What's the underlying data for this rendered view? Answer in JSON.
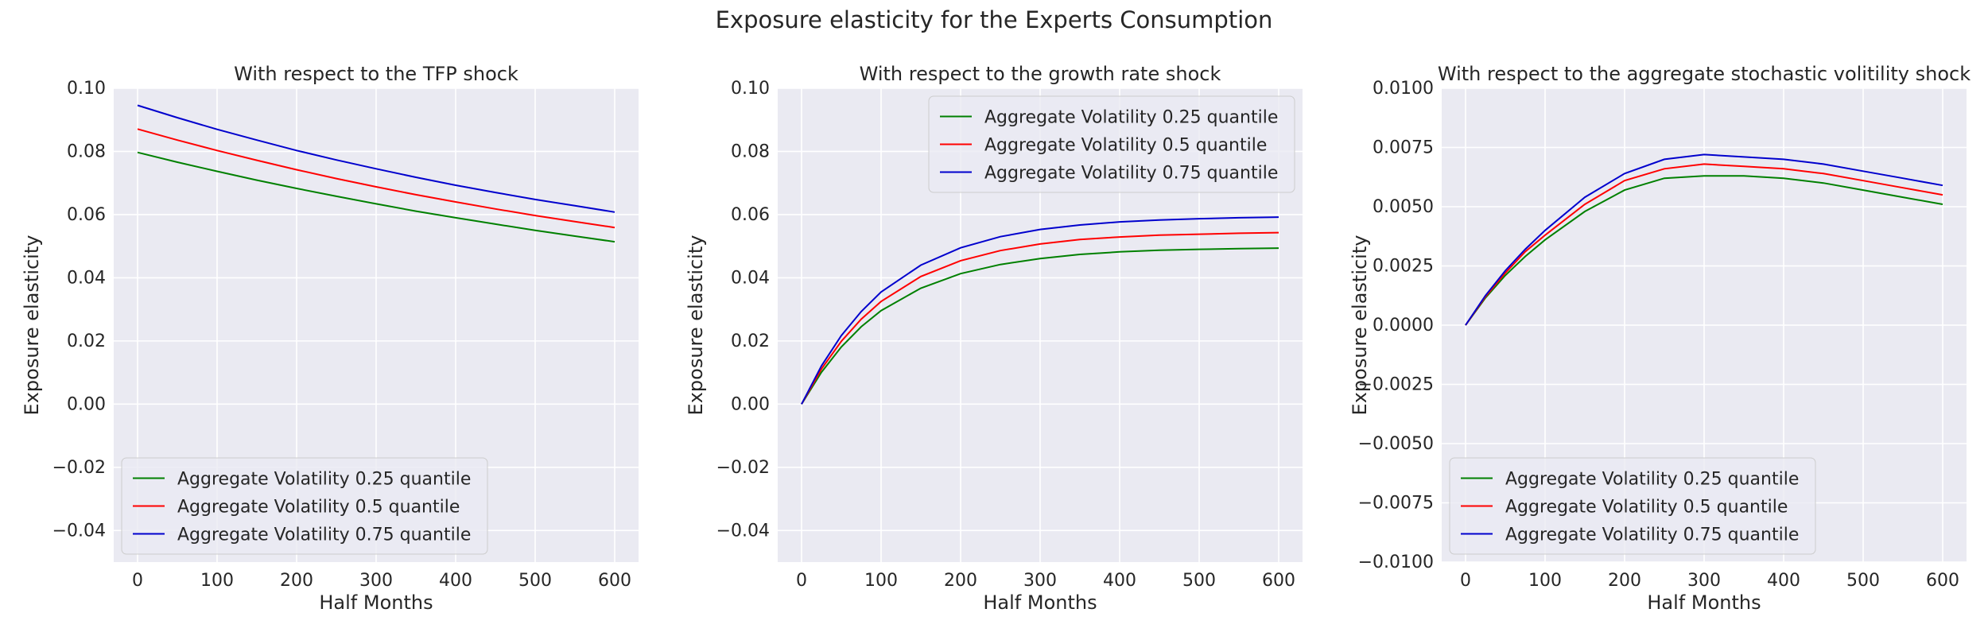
{
  "figure": {
    "title": "Exposure elasticity for the Experts Consumption"
  },
  "chart_data": [
    {
      "type": "line",
      "title": "With respect to the TFP shock",
      "xlabel": "Half Months",
      "ylabel": "Exposure elasticity",
      "xlim": [
        -30,
        630
      ],
      "ylim": [
        -0.05,
        0.1
      ],
      "xticks": [
        0,
        100,
        200,
        300,
        400,
        500,
        600
      ],
      "xtick_labels": [
        "0",
        "100",
        "200",
        "300",
        "400",
        "500",
        "600"
      ],
      "yticks": [
        -0.04,
        -0.02,
        0.0,
        0.02,
        0.04,
        0.06,
        0.08,
        0.1
      ],
      "ytick_labels": [
        "−0.04",
        "−0.02",
        "0.00",
        "0.02",
        "0.04",
        "0.06",
        "0.08",
        "0.10"
      ],
      "grid": true,
      "legend_position": "lower-left",
      "x": [
        0,
        50,
        100,
        150,
        200,
        250,
        300,
        350,
        400,
        450,
        500,
        550,
        600
      ],
      "series": [
        {
          "name": "Aggregate Volatility 0.25 quantile",
          "color": "#008000",
          "values": [
            0.0797,
            0.0766,
            0.0737,
            0.0709,
            0.0683,
            0.0658,
            0.0634,
            0.0611,
            0.059,
            0.057,
            0.055,
            0.0532,
            0.0514
          ]
        },
        {
          "name": "Aggregate Volatility 0.5 quantile",
          "color": "#ff0000",
          "values": [
            0.0871,
            0.0836,
            0.0803,
            0.0772,
            0.0742,
            0.0714,
            0.0688,
            0.0663,
            0.064,
            0.0618,
            0.0597,
            0.0578,
            0.0559
          ]
        },
        {
          "name": "Aggregate Volatility 0.75 quantile",
          "color": "#0000cd",
          "values": [
            0.0946,
            0.0907,
            0.087,
            0.0836,
            0.0803,
            0.0773,
            0.0745,
            0.0718,
            0.0693,
            0.067,
            0.0648,
            0.0628,
            0.0608
          ]
        }
      ]
    },
    {
      "type": "line",
      "title": "With respect to the growth rate shock",
      "xlabel": "Half Months",
      "ylabel": "Exposure elasticity",
      "xlim": [
        -30,
        630
      ],
      "ylim": [
        -0.05,
        0.1
      ],
      "xticks": [
        0,
        100,
        200,
        300,
        400,
        500,
        600
      ],
      "xtick_labels": [
        "0",
        "100",
        "200",
        "300",
        "400",
        "500",
        "600"
      ],
      "yticks": [
        -0.04,
        -0.02,
        0.0,
        0.02,
        0.04,
        0.06,
        0.08,
        0.1
      ],
      "ytick_labels": [
        "−0.04",
        "−0.02",
        "0.00",
        "0.02",
        "0.04",
        "0.06",
        "0.08",
        "0.10"
      ],
      "grid": true,
      "legend_position": "upper-right",
      "x": [
        0,
        25,
        50,
        75,
        100,
        150,
        200,
        250,
        300,
        350,
        400,
        450,
        500,
        550,
        600
      ],
      "series": [
        {
          "name": "Aggregate Volatility 0.25 quantile",
          "color": "#008000",
          "values": [
            0.0,
            0.0101,
            0.0181,
            0.0245,
            0.0296,
            0.0367,
            0.0413,
            0.0442,
            0.0461,
            0.0474,
            0.0482,
            0.0487,
            0.049,
            0.0492,
            0.0494
          ]
        },
        {
          "name": "Aggregate Volatility 0.5 quantile",
          "color": "#ff0000",
          "values": [
            0.0,
            0.0111,
            0.0199,
            0.0269,
            0.0325,
            0.0404,
            0.0454,
            0.0486,
            0.0507,
            0.0521,
            0.0529,
            0.0535,
            0.0538,
            0.0541,
            0.0543
          ]
        },
        {
          "name": "Aggregate Volatility 0.75 quantile",
          "color": "#0000cd",
          "values": [
            0.0,
            0.0121,
            0.0217,
            0.0293,
            0.0355,
            0.044,
            0.0495,
            0.053,
            0.0553,
            0.0567,
            0.0577,
            0.0583,
            0.0587,
            0.059,
            0.0592
          ]
        }
      ]
    },
    {
      "type": "line",
      "title": "With respect to the aggregate stochastic volitility shock",
      "xlabel": "Half Months",
      "ylabel": "Exposure elasticity",
      "xlim": [
        -30,
        630
      ],
      "ylim": [
        -0.01,
        0.01
      ],
      "xticks": [
        0,
        100,
        200,
        300,
        400,
        500,
        600
      ],
      "xtick_labels": [
        "0",
        "100",
        "200",
        "300",
        "400",
        "500",
        "600"
      ],
      "yticks": [
        -0.01,
        -0.0075,
        -0.005,
        -0.0025,
        0.0,
        0.0025,
        0.005,
        0.0075,
        0.01
      ],
      "ytick_labels": [
        "−0.0100",
        "−0.0075",
        "−0.0050",
        "−0.0025",
        "0.0000",
        "0.0025",
        "0.0050",
        "0.0075",
        "0.0100"
      ],
      "grid": true,
      "legend_position": "lower-left",
      "x": [
        0,
        25,
        50,
        75,
        100,
        150,
        200,
        250,
        300,
        350,
        400,
        450,
        500,
        550,
        600
      ],
      "series": [
        {
          "name": "Aggregate Volatility 0.25 quantile",
          "color": "#008000",
          "values": [
            0.0,
            0.00115,
            0.0021,
            0.0029,
            0.0036,
            0.0048,
            0.0057,
            0.0062,
            0.0063,
            0.0063,
            0.0062,
            0.006,
            0.0057,
            0.0054,
            0.0051
          ]
        },
        {
          "name": "Aggregate Volatility 0.5 quantile",
          "color": "#ff0000",
          "values": [
            0.0,
            0.0012,
            0.0022,
            0.0031,
            0.0038,
            0.0051,
            0.0061,
            0.0066,
            0.0068,
            0.0067,
            0.0066,
            0.0064,
            0.0061,
            0.0058,
            0.0055
          ]
        },
        {
          "name": "Aggregate Volatility 0.75 quantile",
          "color": "#0000cd",
          "values": [
            0.0,
            0.00125,
            0.0023,
            0.0032,
            0.004,
            0.0054,
            0.0064,
            0.007,
            0.0072,
            0.0071,
            0.007,
            0.0068,
            0.0065,
            0.0062,
            0.0059
          ]
        }
      ]
    }
  ]
}
